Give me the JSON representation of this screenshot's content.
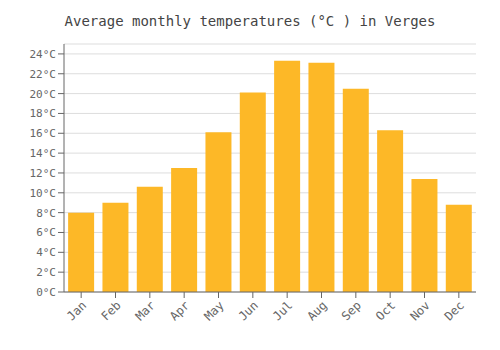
{
  "chart_data": {
    "type": "bar",
    "title": "Average monthly temperatures (°C ) in Verges",
    "categories": [
      "Jan",
      "Feb",
      "Mar",
      "Apr",
      "May",
      "Jun",
      "Jul",
      "Aug",
      "Sep",
      "Oct",
      "Nov",
      "Dec"
    ],
    "values": [
      8.0,
      9.0,
      10.6,
      12.5,
      16.1,
      20.1,
      23.3,
      23.1,
      20.5,
      16.3,
      11.4,
      8.8
    ],
    "color": "#FDB827",
    "ylim": [
      0,
      25
    ],
    "yticks": [
      {
        "value": 0,
        "label": "0°C"
      },
      {
        "value": 2,
        "label": "2°C"
      },
      {
        "value": 4,
        "label": "4°C"
      },
      {
        "value": 6,
        "label": "6°C"
      },
      {
        "value": 8,
        "label": "8°C"
      },
      {
        "value": 10,
        "label": "10°C"
      },
      {
        "value": 12,
        "label": "12°C"
      },
      {
        "value": 14,
        "label": "14°C"
      },
      {
        "value": 16,
        "label": "16°C"
      },
      {
        "value": 18,
        "label": "18°C"
      },
      {
        "value": 20,
        "label": "20°C"
      },
      {
        "value": 22,
        "label": "22°C"
      },
      {
        "value": 24,
        "label": "24°C"
      }
    ],
    "grid": true
  }
}
